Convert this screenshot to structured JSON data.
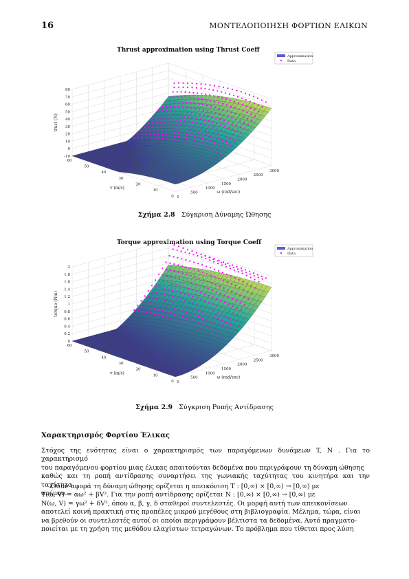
{
  "header": {
    "page_number": "16",
    "running_title": "ΜΟΝΤΕΛΟΠΟΙΗΣΗ ΦΟΡΤΙΩΝ ΕΛΙΚΩΝ"
  },
  "figures": [
    {
      "title": "Thrust approximation using Thrust Coeff",
      "legend": [
        "Approximation",
        "Data"
      ],
      "zlabel": "trust (N)",
      "z_ticks": [
        "80",
        "70",
        "60",
        "50",
        "40",
        "30",
        "20",
        "10",
        "0",
        "-10"
      ],
      "v_ticks": [
        "60",
        "50",
        "40",
        "30",
        "20",
        "10",
        "0"
      ],
      "w_ticks": [
        "0",
        "500",
        "1000",
        "1500",
        "2000",
        "2500",
        "3000"
      ],
      "vlabel": "v (m/s)",
      "wlabel": "ω (rad/sec)",
      "caption_label": "Σχήμα 2.8",
      "caption_text": "Σύγκριση Δύναμης Ώθησης"
    },
    {
      "title": "Torque approximation using Torque Coeff",
      "legend": [
        "Approximation",
        "Data"
      ],
      "zlabel": "torque (Nm)",
      "z_ticks": [
        "2",
        "1.8",
        "1.6",
        "1.4",
        "1.2",
        "1",
        "0.8",
        "0.6",
        "0.4",
        "0.2",
        "0"
      ],
      "v_ticks": [
        "60",
        "50",
        "40",
        "30",
        "20",
        "10",
        "0"
      ],
      "w_ticks": [
        "0",
        "500",
        "1000",
        "1500",
        "2000",
        "2500",
        "3000"
      ],
      "vlabel": "v (m/s)",
      "wlabel": "ω (rad/sec)",
      "caption_label": "Σχήμα 2.9",
      "caption_text": "Σύγκριση Ροπής Αντίδρασης"
    }
  ],
  "colors": {
    "surface_low": "#3b3b8f",
    "surface_mid": "#2aa79b",
    "surface_high": "#e6e34a",
    "data": "#ff00ff",
    "legend_approx": "#5b5bd6"
  },
  "section": {
    "title": "Χαρακτηρισμός Φορτίου Έλικας"
  },
  "paragraph1": [
    "Στόχος της ενότητας είναι ο χαρακτηρισμός των παραγόμενων δυνάμεων T, N . Για το χαρακτηρισμό",
    "του παραγόμενου φορτίου μιας έλικας απαιτούνται δεδομένα που περιγράφουν τη δύναμη ώθησης",
    "καθώς και τη ροπή αντίδρασης συναρτήσει της γωνιακής ταχύτητας του κινητήρα και την ταχύτητα",
    "ανέμου."
  ],
  "paragraph2": [
    "Όσον αφορά τη δύναμη ώθησης ορίζεται η απεικόνιση T : [0,∞) × [0,∞) → [0,∞) με",
    "T(ω, V) = αω² + βV².  Για την ροπή αντίδρασης ορίζεται N : [0,∞) × [0,∞) → [0,∞) με",
    "N(ω, V) = γω² + δV², όπου α, β, γ, δ σταθεροί συντελεστές. Οι μορφή αυτή των απεικονίσεων",
    "αποτελεί κοινή πρακτική στις προπέλες μικρού μεγέθους στη βιβλιογραφία. Μέλημα, τώρα, είναι",
    "να βρεθούν οι συντελεστές αυτοί οι οποίοι περιγράφουν βέλτιστα τα δεδομένα. Αυτό πραγματο-",
    "ποιείται με τη χρήση της μεθόδου ελαχίστων τετραγώνων. Το πρόβλημα που τίθεται προς λύση"
  ]
}
